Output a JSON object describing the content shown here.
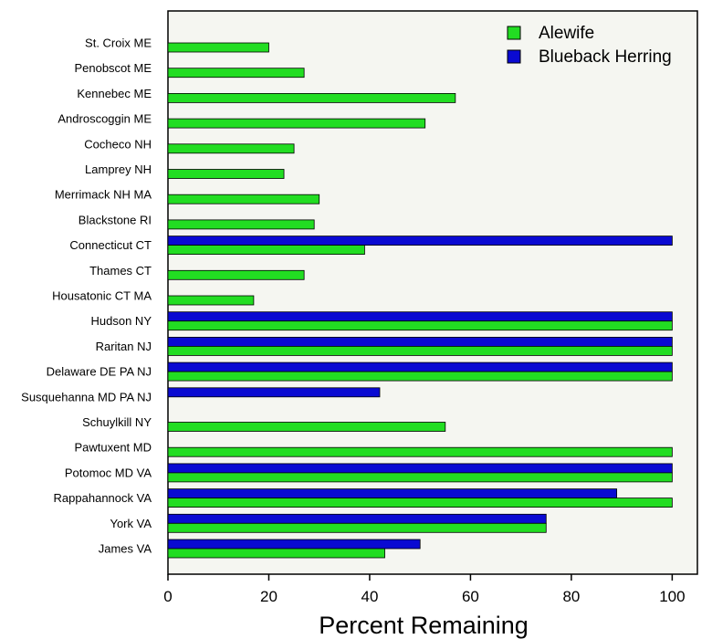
{
  "chart_data": {
    "type": "bar",
    "orientation": "horizontal",
    "title": "",
    "xlabel": "Percent Remaining",
    "ylabel": "",
    "xlim": [
      0,
      105
    ],
    "xticks": [
      0,
      20,
      40,
      60,
      80,
      100
    ],
    "grid": false,
    "legend_position": "top-right",
    "categories": [
      "St. Croix ME",
      "Penobscot ME",
      "Kennebec ME",
      "Androscoggin ME",
      "Cocheco NH",
      "Lamprey NH",
      "Merrimack NH MA",
      "Blackstone RI",
      "Connecticut CT",
      "Thames CT",
      "Housatonic CT MA",
      "Hudson NY",
      "Raritan NJ",
      "Delaware DE PA NJ",
      "Susquehanna MD PA  NJ",
      "Schuylkill NY",
      "Pawtuxent MD",
      "Potomoc MD VA",
      "Rappahannock VA",
      "York VA",
      "James VA"
    ],
    "series": [
      {
        "name": "Alewife",
        "color": "#22dd22",
        "values": [
          20,
          27,
          57,
          51,
          25,
          23,
          30,
          29,
          39,
          27,
          17,
          100,
          100,
          100,
          null,
          55,
          100,
          100,
          100,
          75,
          43
        ]
      },
      {
        "name": "Blueback Herring",
        "color": "#0a0ad2",
        "values": [
          null,
          null,
          null,
          null,
          null,
          null,
          null,
          null,
          100,
          null,
          null,
          100,
          100,
          100,
          42,
          null,
          null,
          100,
          89,
          75,
          50
        ]
      }
    ],
    "plot_background": "#f5f6f1"
  }
}
